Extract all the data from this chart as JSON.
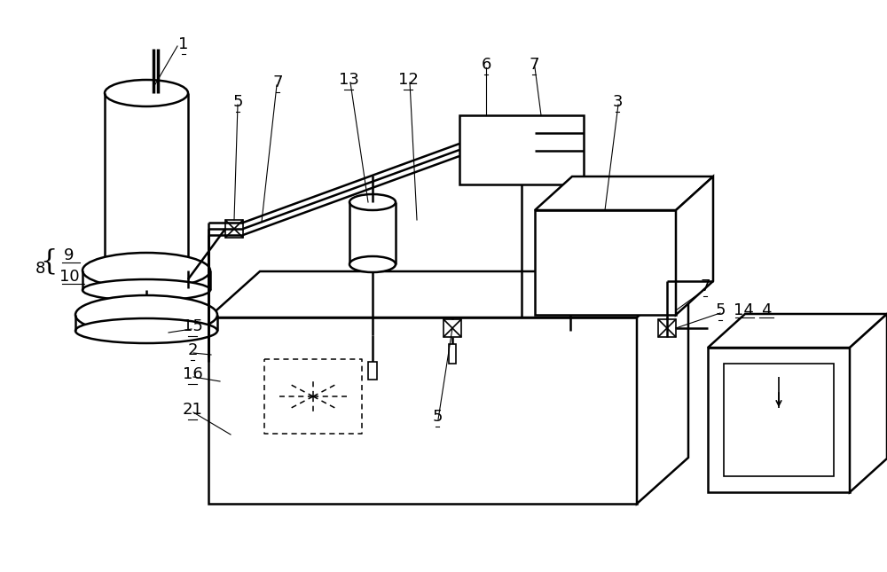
{
  "bg_color": "#ffffff",
  "line_color": "#000000",
  "lw_main": 1.8,
  "lw_thin": 1.2,
  "label_fontsize": 13
}
